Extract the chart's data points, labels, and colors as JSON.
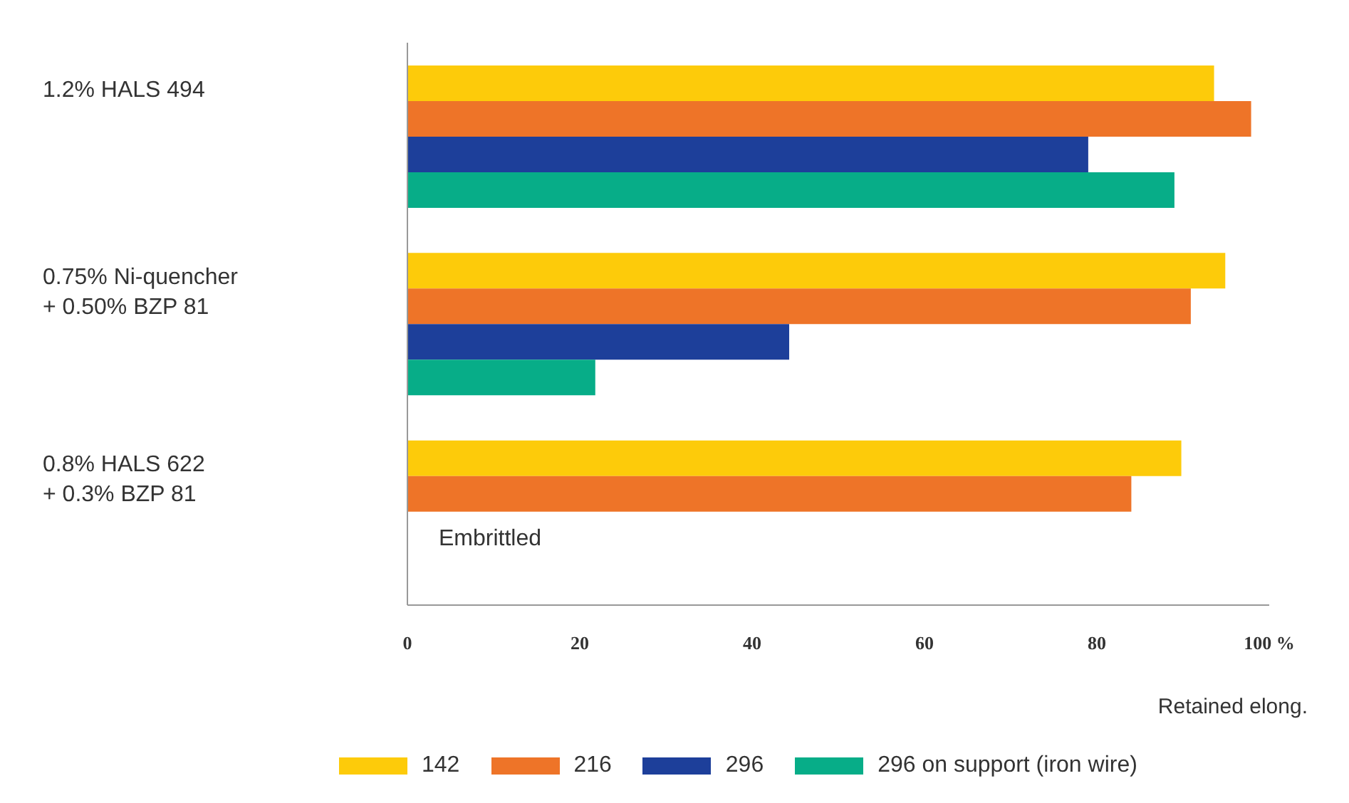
{
  "chart_data": {
    "type": "bar",
    "orientation": "horizontal",
    "categories": [
      "1.2% HALS 494",
      "0.75% Ni-quencher\n+ 0.50% BZP 81",
      "0.8% HALS 622\n+ 0.3% BZP 81"
    ],
    "series": [
      {
        "name": "142",
        "color": "#fdcb0a",
        "values": [
          93.6,
          94.9,
          89.8
        ]
      },
      {
        "name": "216",
        "color": "#ee7428",
        "values": [
          97.9,
          90.9,
          84
        ]
      },
      {
        "name": "296",
        "color": "#1d3f9a",
        "values": [
          79,
          44.3,
          null
        ]
      },
      {
        "name": "296 on support (iron wire)",
        "color": "#07ad88",
        "values": [
          89,
          21.8,
          null
        ]
      }
    ],
    "xlim": [
      0,
      100
    ],
    "xticks": [
      0,
      20,
      40,
      60,
      80,
      {
        "value": 100,
        "label": "100 %"
      }
    ],
    "xlabel": "Retained elong.",
    "annotations": [
      "Embrittled"
    ],
    "grid": false,
    "legend": "bottom"
  }
}
